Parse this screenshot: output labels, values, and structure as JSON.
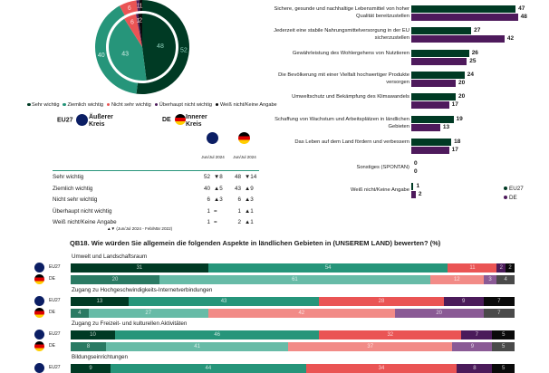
{
  "colors": {
    "sehr": "#003a24",
    "ziemlich": "#26957a",
    "nicht_sehr": "#ea5454",
    "ueberhaupt": "#4b1b5a",
    "weiss": "#0a0a0a",
    "sehr_de": "#2a7a63",
    "ziemlich_de": "#67bba7",
    "nicht_sehr_de": "#f28b87",
    "ueberhaupt_de": "#8a5a95",
    "weiss_de": "#4a4a4a",
    "eu27_bar": "#003a24",
    "de_bar": "#4e1a5c",
    "table_rule": "#26957a"
  },
  "donut": {
    "legend": [
      "Sehr wichtig",
      "Ziemlich wichtig",
      "Nicht sehr wichtig",
      "Überhaupt nicht wichtig",
      "Weiß nicht/Keine Angabe"
    ],
    "eu27_label": "EU27",
    "eu27_ring": "Äußerer Kreis",
    "de_label": "DE",
    "de_ring": "Innerer Kreis"
  },
  "table": {
    "col_header_eu": "Jun/Jul 2024",
    "col_header_de": "Jun/Jul 2024",
    "rows": [
      {
        "label": "Sehr wichtig",
        "eu": "52",
        "eu_diff": "▼8",
        "de": "48",
        "de_diff": "▼14"
      },
      {
        "label": "Ziemlich wichtig",
        "eu": "40",
        "eu_diff": "▲5",
        "de": "43",
        "de_diff": "▲9"
      },
      {
        "label": "Nicht sehr wichtig",
        "eu": "6",
        "eu_diff": "▲3",
        "de": "6",
        "de_diff": "▲3"
      },
      {
        "label": "Überhaupt nicht wichtig",
        "eu": "1",
        "eu_diff": "=",
        "de": "1",
        "de_diff": "▲1"
      },
      {
        "label": "Weiß nicht/Keine Angabe",
        "eu": "1",
        "eu_diff": "=",
        "de": "2",
        "de_diff": "▲1"
      }
    ],
    "footnote": "▲▼ (Jun/Jul 2024 - Feb/Mär 2022)"
  },
  "question_title": "QB18. Wie würden Sie allgemein die folgenden Aspekte in ländlichen Gebieten in (UNSEREM LAND) bewerten? (%)",
  "chart_data": [
    {
      "type": "pie",
      "title": "",
      "legend": [
        "Sehr wichtig",
        "Ziemlich wichtig",
        "Nicht sehr wichtig",
        "Überhaupt nicht wichtig",
        "Weiß nicht/Keine Angabe"
      ],
      "series": [
        {
          "name": "EU27 (Äußerer Kreis)",
          "values": [
            52,
            40,
            6,
            1,
            1
          ]
        },
        {
          "name": "DE (Innerer Kreis)",
          "values": [
            48,
            43,
            6,
            1,
            2
          ]
        }
      ]
    },
    {
      "type": "bar",
      "orientation": "horizontal",
      "categories": [
        "Sichere, gesunde und nachhaltige Lebensmittel von hoher Qualität bereitzustellen",
        "Jederzeit eine stabile Nahrungsmittelversorgung in der EU sicherzustellen",
        "Gewährleistung des Wohlergehens von Nutztieren",
        "Die Bevölkerung mit einer Vielfalt hochwertiger Produkte versorgen",
        "Umweltschutz und Bekämpfung des Klimawandels",
        "Schaffung von Wachstum und Arbeitsplätzen in ländlichen Gebieten",
        "Das Leben auf dem Land fördern und verbessern",
        "Sonstiges (SPONTAN)",
        "Weiß nicht/Keine Angabe"
      ],
      "series": [
        {
          "name": "EU27",
          "values": [
            47,
            27,
            26,
            24,
            20,
            19,
            18,
            0,
            1
          ]
        },
        {
          "name": "DE",
          "values": [
            48,
            42,
            25,
            20,
            17,
            13,
            17,
            0,
            2
          ]
        }
      ],
      "legend": [
        "EU27",
        "DE"
      ],
      "xlim": [
        0,
        50
      ]
    },
    {
      "type": "bar",
      "orientation": "horizontal-stacked",
      "title": "QB18. Wie würden Sie allgemein die folgenden Aspekte in ländlichen Gebieten in (UNSEREM LAND) bewerten? (%)",
      "groups": [
        {
          "label": "Umwelt und Landschaftsraum",
          "rows": [
            {
              "name": "EU27",
              "values": [
                31,
                54,
                11,
                2,
                2
              ]
            },
            {
              "name": "DE",
              "values": [
                20,
                61,
                12,
                3,
                4
              ]
            }
          ]
        },
        {
          "label": "Zugang zu Hochgeschwindigkeits-Internetverbindungen",
          "rows": [
            {
              "name": "EU27",
              "values": [
                13,
                43,
                28,
                9,
                7
              ]
            },
            {
              "name": "DE",
              "values": [
                4,
                27,
                42,
                20,
                7
              ]
            }
          ]
        },
        {
          "label": "Zugang zu Freizeit- und kulturellen Aktivitäten",
          "rows": [
            {
              "name": "EU27",
              "values": [
                10,
                46,
                32,
                7,
                5
              ]
            },
            {
              "name": "DE",
              "values": [
                8,
                41,
                37,
                9,
                5
              ]
            }
          ]
        },
        {
          "label": "Bildungseinrichtungen",
          "rows": [
            {
              "name": "EU27",
              "values": [
                9,
                44,
                34,
                8,
                5
              ]
            }
          ]
        }
      ],
      "xlim": [
        0,
        100
      ]
    }
  ]
}
